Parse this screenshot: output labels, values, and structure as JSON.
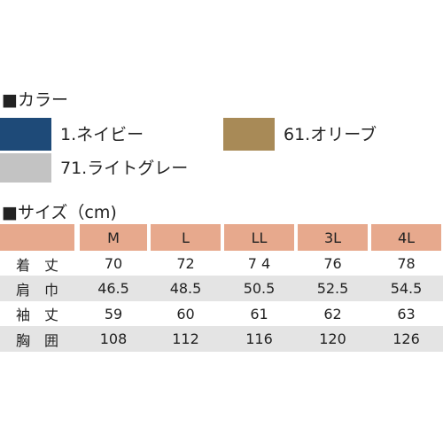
{
  "colors_heading": "■カラー",
  "colors": [
    {
      "label": "1.ネイビー",
      "color": "#1e4a78"
    },
    {
      "label": "61.オリーブ",
      "color": "#a88a57"
    },
    {
      "label": "71.ライトグレー",
      "color": "#c3c3c3"
    }
  ],
  "size_heading": "■サイズ（cm)",
  "table": {
    "header": [
      "M",
      "L",
      "LL",
      "3L",
      "4L"
    ],
    "rows": [
      [
        "着　丈",
        "70",
        "72",
        "7 4",
        "76",
        "78"
      ],
      [
        "肩　巾",
        "46.5",
        "48.5",
        "50.5",
        "52.5",
        "54.5"
      ],
      [
        "袖　丈",
        "59",
        "60",
        "61",
        "62",
        "63"
      ],
      [
        "胸　囲",
        "108",
        "112",
        "116",
        "120",
        "126"
      ]
    ]
  }
}
